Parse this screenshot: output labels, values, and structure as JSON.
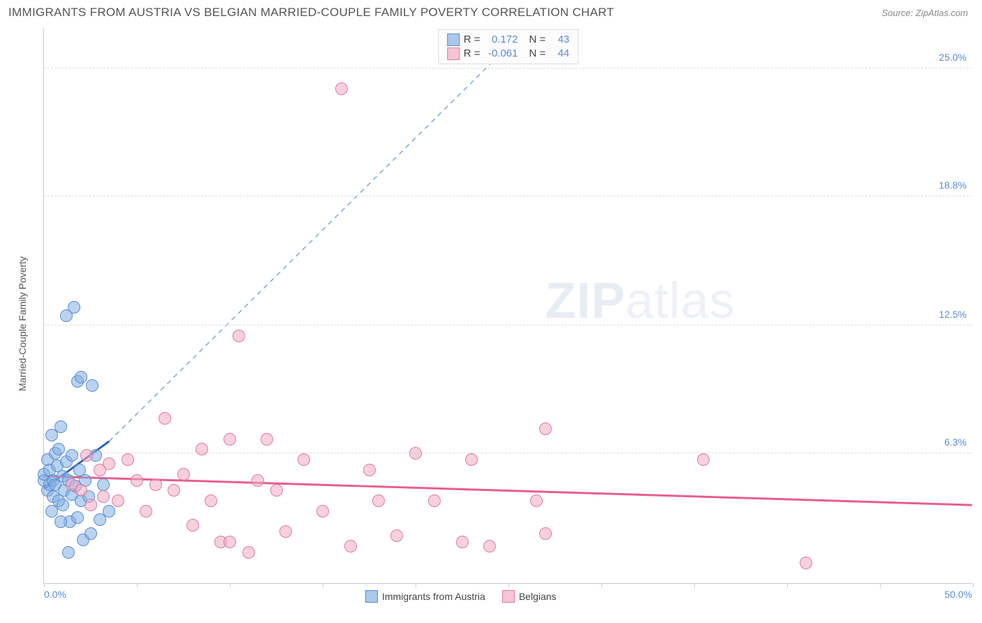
{
  "header": {
    "title": "IMMIGRANTS FROM AUSTRIA VS BELGIAN MARRIED-COUPLE FAMILY POVERTY CORRELATION CHART",
    "source_prefix": "Source: ",
    "source_name": "ZipAtlas.com"
  },
  "axes": {
    "y_label": "Married-Couple Family Poverty",
    "x_min": 0.0,
    "x_max": 50.0,
    "y_min": 0.0,
    "y_max": 27.0,
    "y_ticks": [
      {
        "v": 6.3,
        "label": "6.3%"
      },
      {
        "v": 12.5,
        "label": "12.5%"
      },
      {
        "v": 18.8,
        "label": "18.8%"
      },
      {
        "v": 25.0,
        "label": "25.0%"
      }
    ],
    "x_tick_vals": [
      0,
      5,
      10,
      15,
      20,
      25,
      30,
      35,
      40,
      45,
      50
    ],
    "x_label_min": "0.0%",
    "x_label_max": "50.0%"
  },
  "watermark": {
    "a": "ZIP",
    "b": "atlas"
  },
  "legend_top": {
    "rows": [
      {
        "swatch_fill": "#a9c8ea",
        "swatch_border": "#5b8bd4",
        "r_label": "R =",
        "r_val": "0.172",
        "n_label": "N =",
        "n_val": "43"
      },
      {
        "swatch_fill": "#f6c5d4",
        "swatch_border": "#e07a9a",
        "r_label": "R =",
        "r_val": "-0.061",
        "n_label": "N =",
        "n_val": "44"
      }
    ]
  },
  "legend_bottom": {
    "items": [
      {
        "swatch_fill": "#a9c8ea",
        "swatch_border": "#5b8bd4",
        "label": "Immigrants from Austria"
      },
      {
        "swatch_fill": "#f6c5d4",
        "swatch_border": "#e07a9a",
        "label": "Belgians"
      }
    ]
  },
  "series": {
    "austria": {
      "color_fill": "rgba(130,175,225,0.55)",
      "color_stroke": "#5b8bd4",
      "marker_radius": 9,
      "points": [
        [
          0.0,
          5.0
        ],
        [
          0.0,
          5.3
        ],
        [
          0.2,
          4.5
        ],
        [
          0.2,
          6.0
        ],
        [
          0.3,
          4.8
        ],
        [
          0.3,
          5.5
        ],
        [
          0.4,
          3.5
        ],
        [
          0.5,
          4.2
        ],
        [
          0.5,
          5.0
        ],
        [
          0.6,
          6.3
        ],
        [
          0.6,
          4.8
        ],
        [
          0.7,
          5.7
        ],
        [
          0.8,
          4.0
        ],
        [
          0.8,
          6.5
        ],
        [
          0.9,
          7.6
        ],
        [
          1.0,
          5.2
        ],
        [
          1.0,
          3.8
        ],
        [
          1.1,
          4.5
        ],
        [
          1.2,
          5.9
        ],
        [
          1.2,
          13.0
        ],
        [
          1.3,
          5.0
        ],
        [
          1.4,
          3.0
        ],
        [
          1.5,
          4.3
        ],
        [
          1.5,
          6.2
        ],
        [
          1.6,
          13.4
        ],
        [
          1.7,
          4.7
        ],
        [
          1.8,
          3.2
        ],
        [
          1.8,
          9.8
        ],
        [
          1.9,
          5.5
        ],
        [
          2.0,
          4.0
        ],
        [
          2.0,
          10.0
        ],
        [
          2.1,
          2.1
        ],
        [
          2.2,
          5.0
        ],
        [
          2.4,
          4.2
        ],
        [
          2.5,
          2.4
        ],
        [
          2.6,
          9.6
        ],
        [
          2.8,
          6.2
        ],
        [
          3.0,
          3.1
        ],
        [
          3.2,
          4.8
        ],
        [
          3.5,
          3.5
        ],
        [
          1.3,
          1.5
        ],
        [
          0.4,
          7.2
        ],
        [
          0.9,
          3.0
        ]
      ],
      "trend": {
        "x1": 0.0,
        "y1": 4.6,
        "x2": 3.5,
        "y2": 6.9,
        "solid_color": "#2e63b3",
        "dash_color": "#7fa8db",
        "dash_to_x": 26.0,
        "dash_to_y": 27.0
      }
    },
    "belgians": {
      "color_fill": "rgba(240,170,195,0.55)",
      "color_stroke": "#e07a9a",
      "marker_radius": 9,
      "points": [
        [
          1.5,
          4.8
        ],
        [
          2.0,
          4.5
        ],
        [
          2.3,
          6.2
        ],
        [
          2.5,
          3.8
        ],
        [
          3.0,
          5.5
        ],
        [
          3.2,
          4.2
        ],
        [
          3.5,
          5.8
        ],
        [
          4.0,
          4.0
        ],
        [
          4.5,
          6.0
        ],
        [
          5.0,
          5.0
        ],
        [
          5.5,
          3.5
        ],
        [
          6.0,
          4.8
        ],
        [
          6.5,
          8.0
        ],
        [
          7.0,
          4.5
        ],
        [
          7.5,
          5.3
        ],
        [
          8.0,
          2.8
        ],
        [
          8.5,
          6.5
        ],
        [
          9.0,
          4.0
        ],
        [
          9.5,
          2.0
        ],
        [
          10.0,
          7.0
        ],
        [
          10.0,
          2.0
        ],
        [
          10.5,
          12.0
        ],
        [
          11.0,
          1.5
        ],
        [
          11.5,
          5.0
        ],
        [
          12.0,
          7.0
        ],
        [
          12.5,
          4.5
        ],
        [
          13.0,
          2.5
        ],
        [
          14.0,
          6.0
        ],
        [
          15.0,
          3.5
        ],
        [
          16.0,
          24.0
        ],
        [
          16.5,
          1.8
        ],
        [
          17.5,
          5.5
        ],
        [
          18.0,
          4.0
        ],
        [
          19.0,
          2.3
        ],
        [
          20.0,
          6.3
        ],
        [
          21.0,
          4.0
        ],
        [
          22.5,
          2.0
        ],
        [
          23.0,
          6.0
        ],
        [
          24.0,
          1.8
        ],
        [
          27.0,
          7.5
        ],
        [
          26.5,
          4.0
        ],
        [
          35.5,
          6.0
        ],
        [
          41.0,
          1.0
        ],
        [
          27.0,
          2.4
        ]
      ],
      "trend": {
        "x1": 0.0,
        "y1": 5.2,
        "x2": 50.0,
        "y2": 3.8,
        "solid_color": "#e75e8e"
      }
    }
  }
}
